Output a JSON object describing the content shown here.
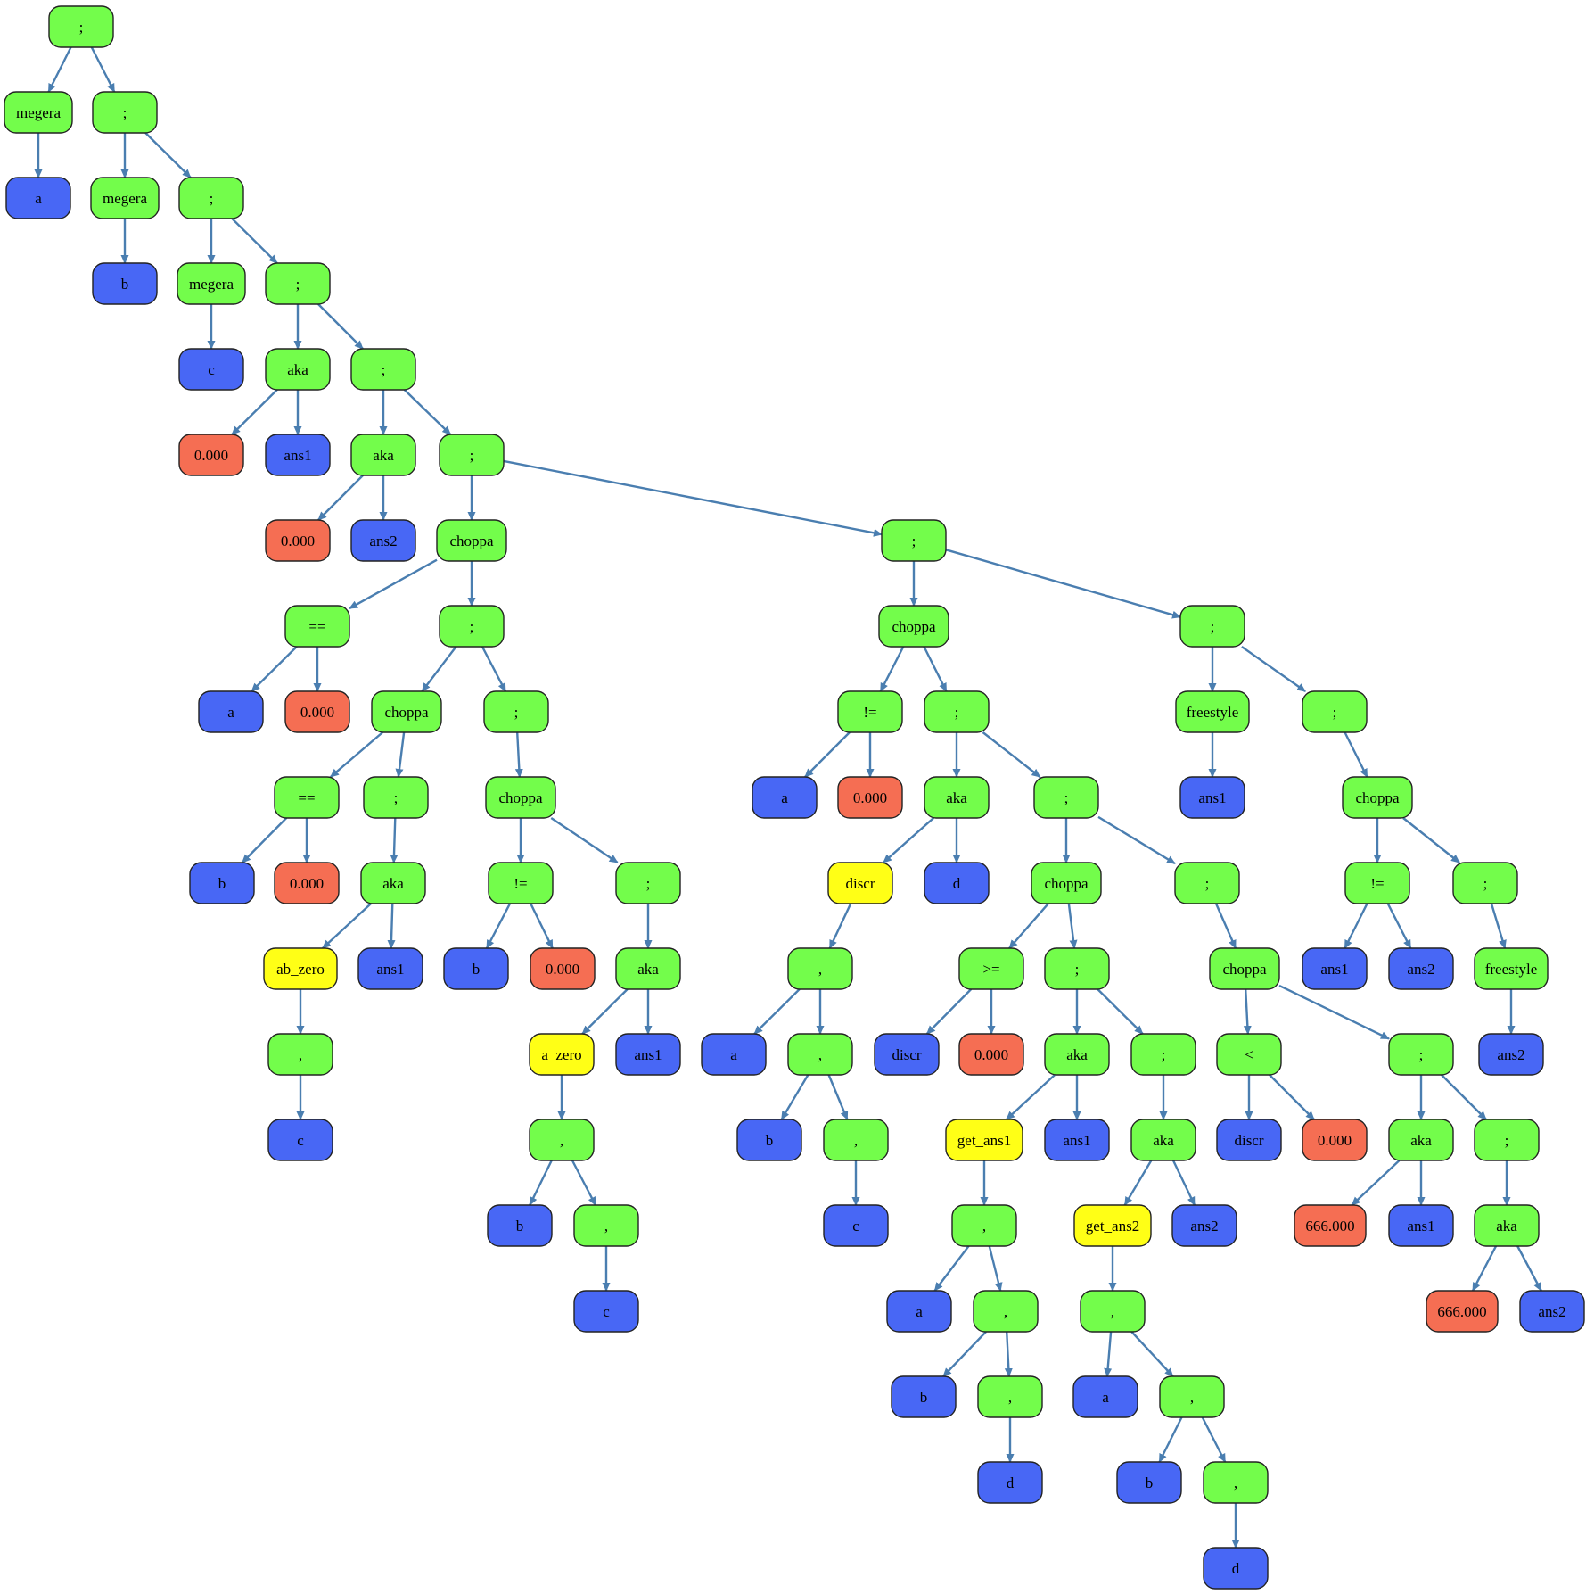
{
  "colors": {
    "op": "#73fd4b",
    "var": "#4867f5",
    "num": "#f56e53",
    "func": "#ffff16",
    "edge": "#4a7eb0",
    "border": "#222222"
  },
  "nodes": [
    {
      "id": "n1",
      "label": ";",
      "kind": "op"
    },
    {
      "id": "n2",
      "label": "megera",
      "kind": "op"
    },
    {
      "id": "n3",
      "label": "a",
      "kind": "var"
    },
    {
      "id": "n4",
      "label": ";",
      "kind": "op"
    },
    {
      "id": "n5",
      "label": "megera",
      "kind": "op"
    },
    {
      "id": "n6",
      "label": "b",
      "kind": "var"
    },
    {
      "id": "n7",
      "label": ";",
      "kind": "op"
    },
    {
      "id": "n8",
      "label": "megera",
      "kind": "op"
    },
    {
      "id": "n9",
      "label": "c",
      "kind": "var"
    },
    {
      "id": "n10",
      "label": ";",
      "kind": "op"
    },
    {
      "id": "n11",
      "label": "aka",
      "kind": "op"
    },
    {
      "id": "n12",
      "label": "0.000",
      "kind": "num"
    },
    {
      "id": "n13",
      "label": "ans1",
      "kind": "var"
    },
    {
      "id": "n14",
      "label": ";",
      "kind": "op"
    },
    {
      "id": "n15",
      "label": "aka",
      "kind": "op"
    },
    {
      "id": "n16",
      "label": "0.000",
      "kind": "num"
    },
    {
      "id": "n17",
      "label": "ans2",
      "kind": "var"
    },
    {
      "id": "n18",
      "label": ";",
      "kind": "op"
    },
    {
      "id": "n19",
      "label": "choppa",
      "kind": "op"
    },
    {
      "id": "n20",
      "label": "==",
      "kind": "op"
    },
    {
      "id": "n21",
      "label": "a",
      "kind": "var"
    },
    {
      "id": "n22",
      "label": "0.000",
      "kind": "num"
    },
    {
      "id": "n23",
      "label": ";",
      "kind": "op"
    },
    {
      "id": "n24",
      "label": "choppa",
      "kind": "op"
    },
    {
      "id": "n25",
      "label": "==",
      "kind": "op"
    },
    {
      "id": "n26",
      "label": "b",
      "kind": "var"
    },
    {
      "id": "n27",
      "label": "0.000",
      "kind": "num"
    },
    {
      "id": "n28",
      "label": ";",
      "kind": "op"
    },
    {
      "id": "n29",
      "label": "aka",
      "kind": "op"
    },
    {
      "id": "n30",
      "label": "ab_zero",
      "kind": "func"
    },
    {
      "id": "n31",
      "label": ",",
      "kind": "op"
    },
    {
      "id": "n32",
      "label": "c",
      "kind": "var"
    },
    {
      "id": "n33",
      "label": "ans1",
      "kind": "var"
    },
    {
      "id": "n34",
      "label": ";",
      "kind": "op"
    },
    {
      "id": "n35",
      "label": "choppa",
      "kind": "op"
    },
    {
      "id": "n36",
      "label": "!=",
      "kind": "op"
    },
    {
      "id": "n37",
      "label": "b",
      "kind": "var"
    },
    {
      "id": "n38",
      "label": "0.000",
      "kind": "num"
    },
    {
      "id": "n39",
      "label": ";",
      "kind": "op"
    },
    {
      "id": "n40",
      "label": "aka",
      "kind": "op"
    },
    {
      "id": "n41",
      "label": "a_zero",
      "kind": "func"
    },
    {
      "id": "n42",
      "label": ",",
      "kind": "op"
    },
    {
      "id": "n43",
      "label": "b",
      "kind": "var"
    },
    {
      "id": "n44",
      "label": ",",
      "kind": "op"
    },
    {
      "id": "n45",
      "label": "c",
      "kind": "var"
    },
    {
      "id": "n46",
      "label": "ans1",
      "kind": "var"
    },
    {
      "id": "n47",
      "label": ";",
      "kind": "op"
    },
    {
      "id": "n48",
      "label": "choppa",
      "kind": "op"
    },
    {
      "id": "n49",
      "label": "!=",
      "kind": "op"
    },
    {
      "id": "n50",
      "label": "a",
      "kind": "var"
    },
    {
      "id": "n51",
      "label": "0.000",
      "kind": "num"
    },
    {
      "id": "n52",
      "label": ";",
      "kind": "op"
    },
    {
      "id": "n53",
      "label": "aka",
      "kind": "op"
    },
    {
      "id": "n54",
      "label": "discr",
      "kind": "func"
    },
    {
      "id": "n55",
      "label": ",",
      "kind": "op"
    },
    {
      "id": "n56",
      "label": "a",
      "kind": "var"
    },
    {
      "id": "n57",
      "label": ",",
      "kind": "op"
    },
    {
      "id": "n58",
      "label": "b",
      "kind": "var"
    },
    {
      "id": "n59",
      "label": ",",
      "kind": "op"
    },
    {
      "id": "n60",
      "label": "c",
      "kind": "var"
    },
    {
      "id": "n61",
      "label": "d",
      "kind": "var"
    },
    {
      "id": "n62",
      "label": ";",
      "kind": "op"
    },
    {
      "id": "n63",
      "label": "choppa",
      "kind": "op"
    },
    {
      "id": "n64",
      "label": ">=",
      "kind": "op"
    },
    {
      "id": "n65",
      "label": "discr",
      "kind": "var"
    },
    {
      "id": "n66",
      "label": "0.000",
      "kind": "num"
    },
    {
      "id": "n67",
      "label": ";",
      "kind": "op"
    },
    {
      "id": "n68",
      "label": "aka",
      "kind": "op"
    },
    {
      "id": "n69",
      "label": "get_ans1",
      "kind": "func"
    },
    {
      "id": "n70",
      "label": ",",
      "kind": "op"
    },
    {
      "id": "n71",
      "label": "a",
      "kind": "var"
    },
    {
      "id": "n72",
      "label": ",",
      "kind": "op"
    },
    {
      "id": "n73",
      "label": "b",
      "kind": "var"
    },
    {
      "id": "n74",
      "label": ",",
      "kind": "op"
    },
    {
      "id": "n75",
      "label": "d",
      "kind": "var"
    },
    {
      "id": "n76",
      "label": "ans1",
      "kind": "var"
    },
    {
      "id": "n77",
      "label": ";",
      "kind": "op"
    },
    {
      "id": "n78",
      "label": "aka",
      "kind": "op"
    },
    {
      "id": "n79",
      "label": "get_ans2",
      "kind": "func"
    },
    {
      "id": "n80",
      "label": ",",
      "kind": "op"
    },
    {
      "id": "n81",
      "label": "a",
      "kind": "var"
    },
    {
      "id": "n82",
      "label": ",",
      "kind": "op"
    },
    {
      "id": "n83",
      "label": "b",
      "kind": "var"
    },
    {
      "id": "n84",
      "label": ",",
      "kind": "op"
    },
    {
      "id": "n85",
      "label": "d",
      "kind": "var"
    },
    {
      "id": "n86",
      "label": "ans2",
      "kind": "var"
    },
    {
      "id": "n87",
      "label": ";",
      "kind": "op"
    },
    {
      "id": "n88",
      "label": "choppa",
      "kind": "op"
    },
    {
      "id": "n89",
      "label": "<",
      "kind": "op"
    },
    {
      "id": "n90",
      "label": "discr",
      "kind": "var"
    },
    {
      "id": "n91",
      "label": "0.000",
      "kind": "num"
    },
    {
      "id": "n92",
      "label": ";",
      "kind": "op"
    },
    {
      "id": "n93",
      "label": "aka",
      "kind": "op"
    },
    {
      "id": "n94",
      "label": "666.000",
      "kind": "num"
    },
    {
      "id": "n95",
      "label": "ans1",
      "kind": "var"
    },
    {
      "id": "n96",
      "label": ";",
      "kind": "op"
    },
    {
      "id": "n97",
      "label": "aka",
      "kind": "op"
    },
    {
      "id": "n98",
      "label": "666.000",
      "kind": "num"
    },
    {
      "id": "n99",
      "label": "ans2",
      "kind": "var"
    },
    {
      "id": "n100",
      "label": ";",
      "kind": "op"
    },
    {
      "id": "n101",
      "label": "freestyle",
      "kind": "op"
    },
    {
      "id": "n102",
      "label": "ans1",
      "kind": "var"
    },
    {
      "id": "n103",
      "label": ";",
      "kind": "op"
    },
    {
      "id": "n104",
      "label": "choppa",
      "kind": "op"
    },
    {
      "id": "n105",
      "label": "!=",
      "kind": "op"
    },
    {
      "id": "n106",
      "label": "ans1",
      "kind": "var"
    },
    {
      "id": "n107",
      "label": "ans2",
      "kind": "var"
    },
    {
      "id": "n108",
      "label": ";",
      "kind": "op"
    },
    {
      "id": "n109",
      "label": "freestyle",
      "kind": "op"
    },
    {
      "id": "n110",
      "label": "ans2",
      "kind": "var"
    }
  ],
  "edges": [
    [
      "n1",
      "n2"
    ],
    [
      "n1",
      "n4"
    ],
    [
      "n2",
      "n3"
    ],
    [
      "n4",
      "n5"
    ],
    [
      "n4",
      "n7"
    ],
    [
      "n5",
      "n6"
    ],
    [
      "n7",
      "n8"
    ],
    [
      "n7",
      "n10"
    ],
    [
      "n8",
      "n9"
    ],
    [
      "n10",
      "n11"
    ],
    [
      "n10",
      "n14"
    ],
    [
      "n11",
      "n12"
    ],
    [
      "n11",
      "n13"
    ],
    [
      "n14",
      "n15"
    ],
    [
      "n14",
      "n18"
    ],
    [
      "n15",
      "n16"
    ],
    [
      "n15",
      "n17"
    ],
    [
      "n18",
      "n19"
    ],
    [
      "n18",
      "n47"
    ],
    [
      "n19",
      "n20"
    ],
    [
      "n19",
      "n23"
    ],
    [
      "n20",
      "n21"
    ],
    [
      "n20",
      "n22"
    ],
    [
      "n23",
      "n24"
    ],
    [
      "n23",
      "n34"
    ],
    [
      "n24",
      "n25"
    ],
    [
      "n24",
      "n28"
    ],
    [
      "n25",
      "n26"
    ],
    [
      "n25",
      "n27"
    ],
    [
      "n28",
      "n29"
    ],
    [
      "n29",
      "n30"
    ],
    [
      "n29",
      "n33"
    ],
    [
      "n30",
      "n31"
    ],
    [
      "n31",
      "n32"
    ],
    [
      "n34",
      "n35"
    ],
    [
      "n35",
      "n36"
    ],
    [
      "n35",
      "n39"
    ],
    [
      "n36",
      "n37"
    ],
    [
      "n36",
      "n38"
    ],
    [
      "n39",
      "n40"
    ],
    [
      "n40",
      "n41"
    ],
    [
      "n40",
      "n46"
    ],
    [
      "n41",
      "n42"
    ],
    [
      "n42",
      "n43"
    ],
    [
      "n42",
      "n44"
    ],
    [
      "n44",
      "n45"
    ],
    [
      "n47",
      "n48"
    ],
    [
      "n47",
      "n100"
    ],
    [
      "n48",
      "n49"
    ],
    [
      "n48",
      "n52"
    ],
    [
      "n49",
      "n50"
    ],
    [
      "n49",
      "n51"
    ],
    [
      "n52",
      "n53"
    ],
    [
      "n52",
      "n62"
    ],
    [
      "n53",
      "n54"
    ],
    [
      "n53",
      "n61"
    ],
    [
      "n54",
      "n55"
    ],
    [
      "n55",
      "n56"
    ],
    [
      "n55",
      "n57"
    ],
    [
      "n57",
      "n58"
    ],
    [
      "n57",
      "n59"
    ],
    [
      "n59",
      "n60"
    ],
    [
      "n62",
      "n63"
    ],
    [
      "n62",
      "n87"
    ],
    [
      "n63",
      "n64"
    ],
    [
      "n63",
      "n67"
    ],
    [
      "n64",
      "n65"
    ],
    [
      "n64",
      "n66"
    ],
    [
      "n67",
      "n68"
    ],
    [
      "n67",
      "n77"
    ],
    [
      "n68",
      "n69"
    ],
    [
      "n68",
      "n76"
    ],
    [
      "n69",
      "n70"
    ],
    [
      "n70",
      "n71"
    ],
    [
      "n70",
      "n72"
    ],
    [
      "n72",
      "n73"
    ],
    [
      "n72",
      "n74"
    ],
    [
      "n74",
      "n75"
    ],
    [
      "n77",
      "n78"
    ],
    [
      "n78",
      "n79"
    ],
    [
      "n78",
      "n86"
    ],
    [
      "n79",
      "n80"
    ],
    [
      "n80",
      "n81"
    ],
    [
      "n80",
      "n82"
    ],
    [
      "n82",
      "n83"
    ],
    [
      "n82",
      "n84"
    ],
    [
      "n84",
      "n85"
    ],
    [
      "n87",
      "n88"
    ],
    [
      "n88",
      "n89"
    ],
    [
      "n88",
      "n92"
    ],
    [
      "n89",
      "n90"
    ],
    [
      "n89",
      "n91"
    ],
    [
      "n92",
      "n93"
    ],
    [
      "n92",
      "n96"
    ],
    [
      "n93",
      "n94"
    ],
    [
      "n93",
      "n95"
    ],
    [
      "n96",
      "n97"
    ],
    [
      "n97",
      "n98"
    ],
    [
      "n97",
      "n99"
    ],
    [
      "n100",
      "n101"
    ],
    [
      "n100",
      "n103"
    ],
    [
      "n101",
      "n102"
    ],
    [
      "n103",
      "n104"
    ],
    [
      "n104",
      "n105"
    ],
    [
      "n104",
      "n108"
    ],
    [
      "n105",
      "n106"
    ],
    [
      "n105",
      "n107"
    ],
    [
      "n108",
      "n109"
    ],
    [
      "n109",
      "n110"
    ]
  ]
}
